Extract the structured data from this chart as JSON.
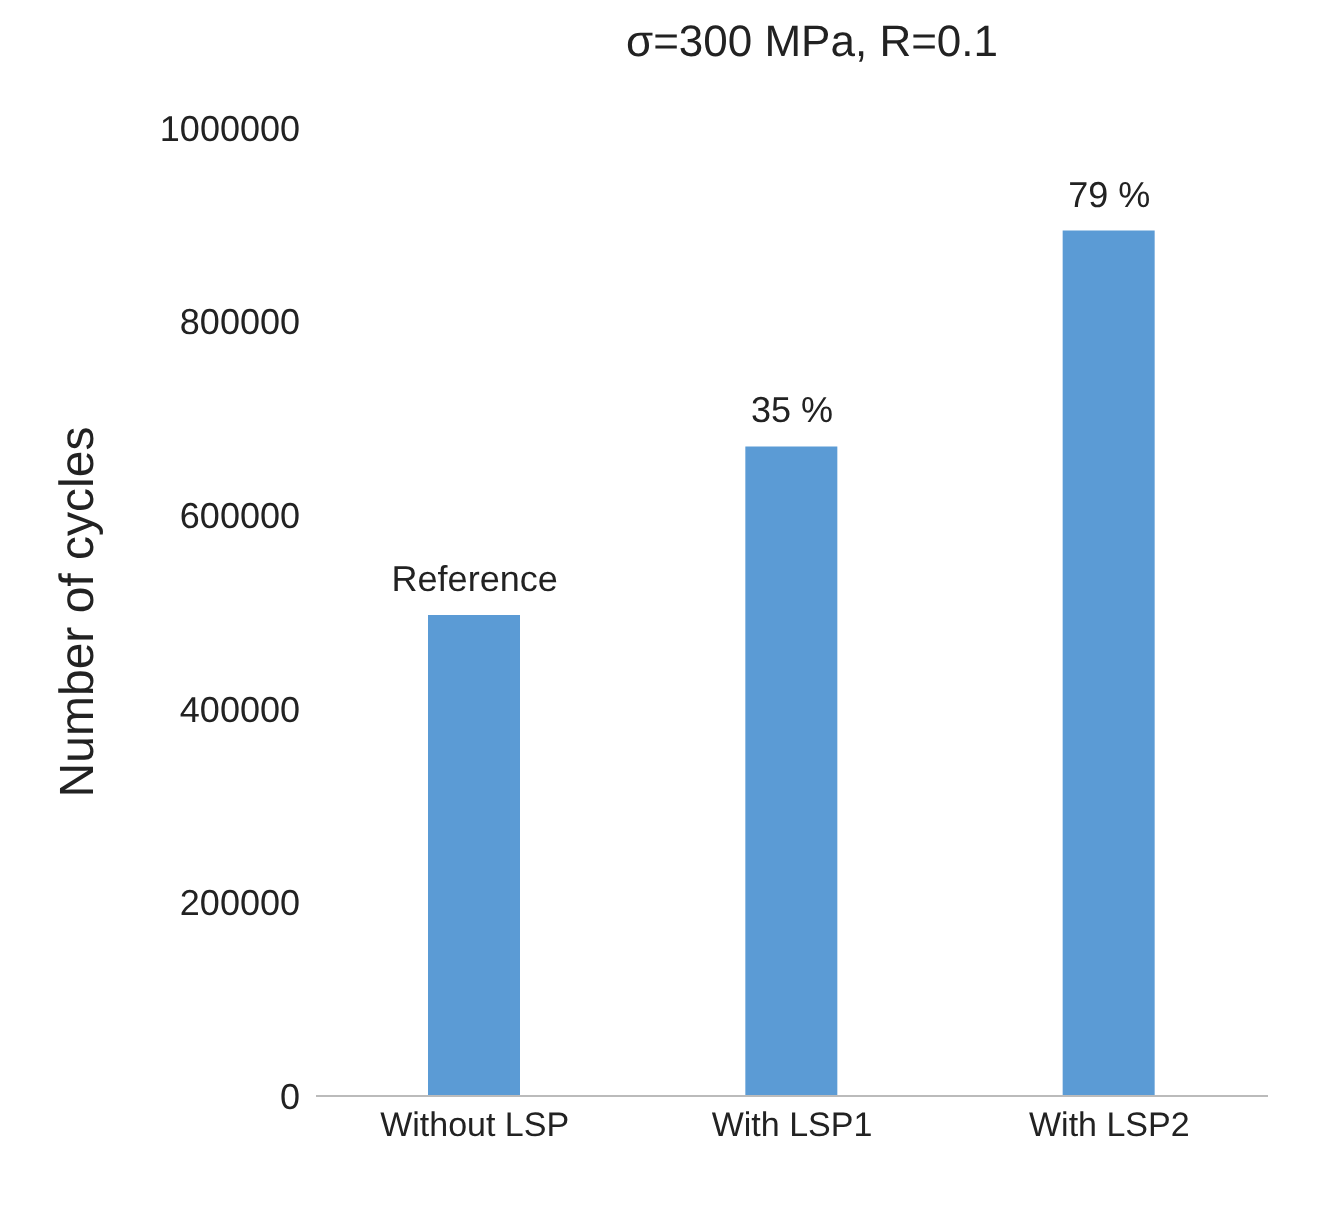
{
  "chart_data": {
    "type": "bar",
    "title": "σ=300 MPa, R=0.1",
    "ylabel": "Number of cycles",
    "categories": [
      "Without LSP",
      "With LSP1",
      "With LSP2"
    ],
    "values": [
      497000,
      671000,
      894000
    ],
    "annotations": [
      {
        "text": "Reference",
        "x": "Without LSP",
        "y": 497000
      },
      {
        "text": "35 %",
        "x": "With LSP1",
        "y": 671000
      },
      {
        "text": "79 %",
        "x": "With LSP2",
        "y": 894000
      }
    ],
    "color": "#5b9bd5",
    "ylim": [
      0,
      1000000
    ],
    "yticks": [
      0,
      200000,
      400000,
      600000,
      800000,
      1000000
    ],
    "grid": false
  }
}
